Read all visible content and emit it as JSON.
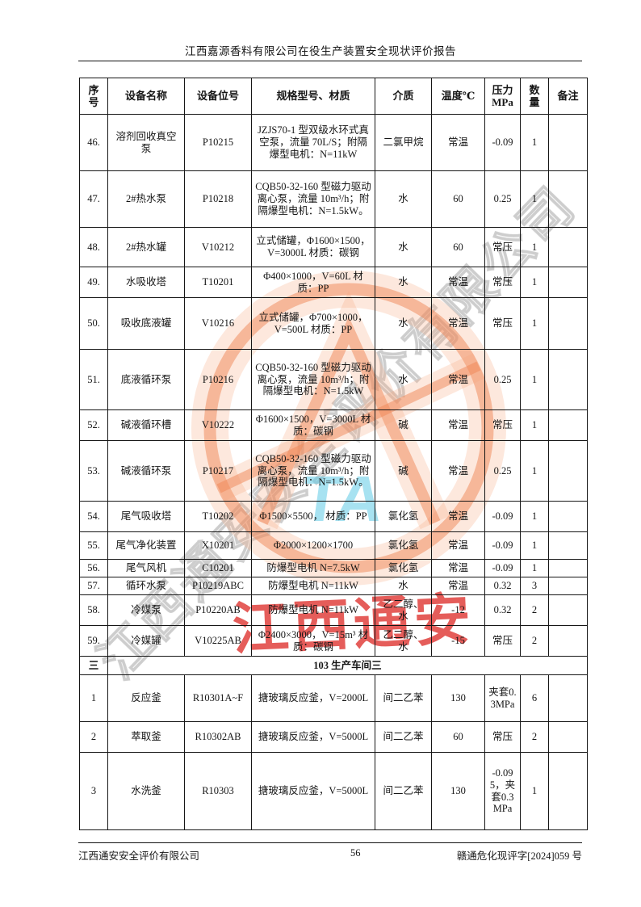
{
  "header": {
    "title": "江西嘉源香料有限公司在役生产装置安全现状评价报告"
  },
  "table": {
    "columns": [
      "序\n号",
      "设备名称",
      "设备位号",
      "规格型号、材质",
      "介质",
      "温度℃",
      "压力\nMPa",
      "数\n量",
      "备注"
    ],
    "rows": [
      {
        "no": "46.",
        "name": "溶剂回收真空泵",
        "tag": "P10215",
        "spec": "JZJS70-1 型双级水环式真空泵，流量 70L/S；附隔爆型电机：N=11kW",
        "medium": "二氯甲烷",
        "temp": "常温",
        "pressure": "-0.09",
        "qty": "1",
        "note": ""
      },
      {
        "no": "47.",
        "name": "2#热水泵",
        "tag": "P10218",
        "spec": "CQB50-32-160 型磁力驱动离心泵，流量 10m³/h；附隔爆型电机：N=1.5kW。",
        "medium": "水",
        "temp": "60",
        "pressure": "0.25",
        "qty": "1",
        "note": ""
      },
      {
        "no": "48.",
        "name": "2#热水罐",
        "tag": "V10212",
        "spec": "立式储罐，Φ1600×1500，V=3000L 材质：碳钢",
        "medium": "水",
        "temp": "60",
        "pressure": "常压",
        "qty": "1",
        "note": ""
      },
      {
        "no": "49.",
        "name": "水吸收塔",
        "tag": "T10201",
        "spec": "Φ400×1000，V=60L 材质：PP",
        "medium": "水",
        "temp": "常温",
        "pressure": "常压",
        "qty": "1",
        "note": ""
      },
      {
        "no": "50.",
        "name": "吸收底液罐",
        "tag": "V10216",
        "spec": "立式储罐，Φ700×1000，V=500L 材质：PP",
        "medium": "水",
        "temp": "常温",
        "pressure": "常压",
        "qty": "1",
        "note": ""
      },
      {
        "no": "51.",
        "name": "底液循环泵",
        "tag": "P10216",
        "spec": "CQB50-32-160 型磁力驱动离心泵，流量 10m³/h；附隔爆型电机：N=1.5kW",
        "medium": "水",
        "temp": "常温",
        "pressure": "0.25",
        "qty": "1",
        "note": ""
      },
      {
        "no": "52.",
        "name": "碱液循环槽",
        "tag": "V10222",
        "spec": "Φ1600×1500，V=3000L 材质：碳钢",
        "medium": "碱",
        "temp": "常温",
        "pressure": "常压",
        "qty": "1",
        "note": ""
      },
      {
        "no": "53.",
        "name": "碱液循环泵",
        "tag": "P10217",
        "spec": "CQB50-32-160 型磁力驱动离心泵，流量 10m³/h；附隔爆型电机：N=1.5kW。",
        "medium": "碱",
        "temp": "常温",
        "pressure": "0.25",
        "qty": "1",
        "note": ""
      },
      {
        "no": "54.",
        "name": "尾气吸收塔",
        "tag": "T10202",
        "spec": "Φ1500×5500， 材质：PP",
        "medium": "氯化氢",
        "temp": "常温",
        "pressure": "-0.09",
        "qty": "1",
        "note": ""
      },
      {
        "no": "55.",
        "name": "尾气净化装置",
        "tag": "X10201",
        "spec": "Φ2000×1200×1700",
        "medium": "氯化氢",
        "temp": "常温",
        "pressure": "-0.09",
        "qty": "1",
        "note": ""
      },
      {
        "no": "56.",
        "name": "尾气风机",
        "tag": "C10201",
        "spec": "防爆型电机 N=7.5kW",
        "medium": "氯化氢",
        "temp": "常温",
        "pressure": "-0.09",
        "qty": "1",
        "note": ""
      },
      {
        "no": "57.",
        "name": "循环水泵",
        "tag": "P10219ABC",
        "spec": "防爆型电机 N=11kW",
        "medium": "水",
        "temp": "常温",
        "pressure": "0.32",
        "qty": "3",
        "note": ""
      },
      {
        "no": "58.",
        "name": "冷媒泵",
        "tag": "P10220AB",
        "spec": "防爆型电机 N=11kW",
        "medium": "乙二醇、水",
        "temp": "-12",
        "pressure": "0.32",
        "qty": "2",
        "note": ""
      },
      {
        "no": "59.",
        "name": "冷媒罐",
        "tag": "V10225AB",
        "spec": "Φ2400×3000，V=15m³ 材质：碳钢",
        "medium": "乙二醇、水",
        "temp": "-15",
        "pressure": "常压",
        "qty": "2",
        "note": ""
      },
      {
        "section": true,
        "no": "三",
        "title": "103 生产车间三"
      },
      {
        "no": "1",
        "name": "反应釜",
        "tag": "R10301A~F",
        "spec": "搪玻璃反应釜，V=2000L",
        "medium": "间二乙苯",
        "temp": "130",
        "pressure": "夹套0.3MPa",
        "qty": "6",
        "note": ""
      },
      {
        "no": "2",
        "name": "萃取釜",
        "tag": "R10302AB",
        "spec": "搪玻璃反应釜，V=5000L",
        "medium": "间二乙苯",
        "temp": "60",
        "pressure": "常压",
        "qty": "2",
        "note": ""
      },
      {
        "no": "3",
        "name": "水洗釜",
        "tag": "R10303",
        "spec": "搪玻璃反应釜，V=5000L",
        "medium": "间二乙苯",
        "temp": "130",
        "pressure": "-0.095，夹套0.3MPa",
        "qty": "1",
        "note": ""
      }
    ]
  },
  "footer": {
    "company": "江西通安安全评价有限公司",
    "page_number": "56",
    "doc_number": "赣通危化现评字[2024]059 号"
  },
  "watermark": {
    "diagonal_text": "江西通安安全评价有限公司",
    "ta_text": "TA",
    "red_text": "江西通安",
    "colors": {
      "orange": "#F08555",
      "cyan": "#5FCBE6",
      "red": "#DE302C",
      "gray": "#828282"
    }
  }
}
